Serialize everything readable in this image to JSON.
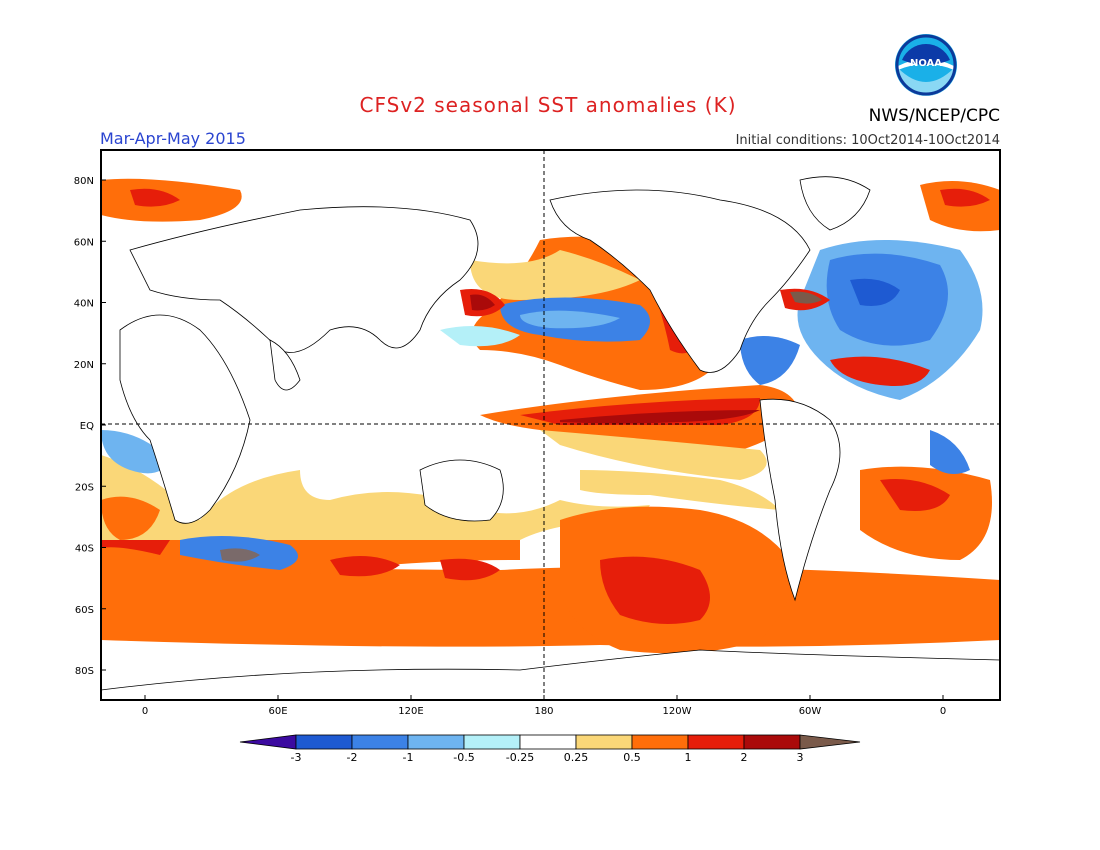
{
  "title": "CFSv2 seasonal SST anomalies (K)",
  "period": "Mar-Apr-May 2015",
  "agency": "NWS/NCEP/CPC",
  "logo_text": "NOAA",
  "initial_conditions": "Initial conditions: 10Oct2014-10Oct2014",
  "map": {
    "lat_ticks": [
      "80N",
      "60N",
      "40N",
      "20N",
      "EQ",
      "20S",
      "40S",
      "60S",
      "80S"
    ],
    "lon_ticks": [
      "0",
      "60E",
      "120E",
      "180",
      "120W",
      "60W",
      "0"
    ]
  },
  "colorbar": {
    "labels": [
      "-3",
      "-2",
      "-1",
      "-0.5",
      "-0.25",
      "0.25",
      "0.5",
      "1",
      "2",
      "3"
    ],
    "colors": [
      "#3c0aa0",
      "#1e5ad2",
      "#3c82e6",
      "#6eb4f0",
      "#b4f0f8",
      "#ffffff",
      "#fad778",
      "#ff6e0a",
      "#e61e0a",
      "#aa0a0a",
      "#7a5a4a"
    ]
  },
  "colors": {
    "title": "#dd2222",
    "period": "#2a44d0",
    "coast": "#000000"
  }
}
